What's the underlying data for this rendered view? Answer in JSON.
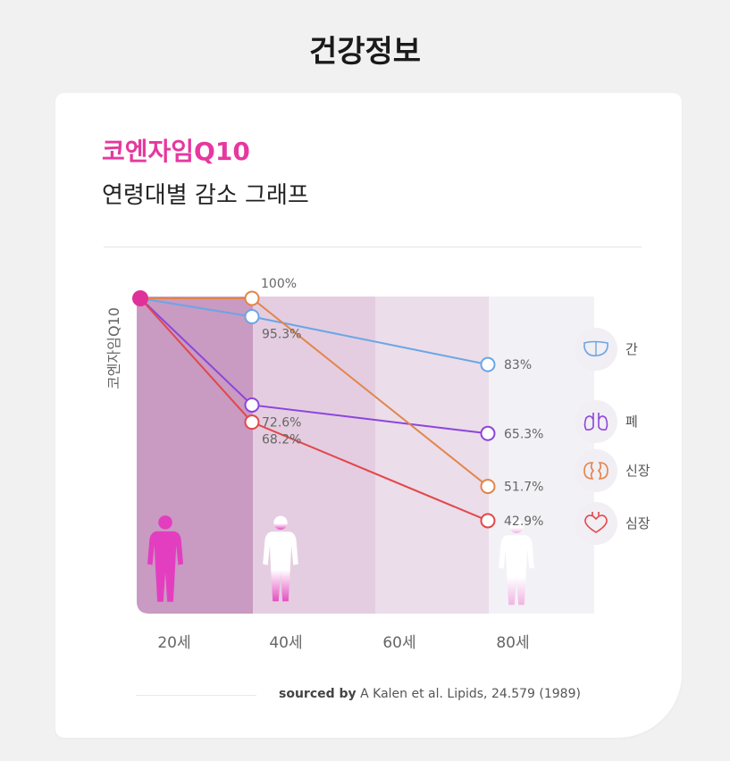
{
  "page": {
    "title": "건강정보"
  },
  "card": {
    "title_line1": "코엔자임Q10",
    "title_line2": "연령대별 감소 그래프",
    "source_prefix": "sourced by",
    "source_text": "A Kalen et al. Lipids, 24.579 (1989)"
  },
  "chart_data": {
    "type": "line",
    "ylabel": "코엔자임Q10",
    "categories": [
      "20세",
      "40세",
      "60세",
      "80세"
    ],
    "ylim": [
      40,
      100
    ],
    "grid": false,
    "legend": "right",
    "start_label": "100%",
    "series": [
      {
        "name": "간",
        "icon": "liver-icon",
        "color": "#6aa6e6",
        "values": [
          100,
          95.3,
          null,
          83
        ],
        "labels": [
          "",
          "95.3%",
          "",
          "83%"
        ]
      },
      {
        "name": "폐",
        "icon": "lungs-icon",
        "color": "#8c45dc",
        "values": [
          100,
          72.6,
          null,
          65.3
        ],
        "labels": [
          "",
          "72.6%",
          "",
          "65.3%"
        ]
      },
      {
        "name": "신장",
        "icon": "kidneys-icon",
        "color": "#e2854b",
        "values": [
          100,
          100,
          null,
          51.7
        ],
        "labels": [
          "",
          "",
          "",
          "51.7%"
        ]
      },
      {
        "name": "심장",
        "icon": "heart-icon",
        "color": "#e2474a",
        "values": [
          100,
          68.2,
          null,
          42.9
        ],
        "labels": [
          "",
          "68.2%",
          "",
          "42.9%"
        ]
      }
    ],
    "band_colors": [
      "#c99ac2",
      "#e4cde1",
      "#ebdde9",
      "#f2f2f6"
    ],
    "start_point_color": "#e0309a"
  }
}
